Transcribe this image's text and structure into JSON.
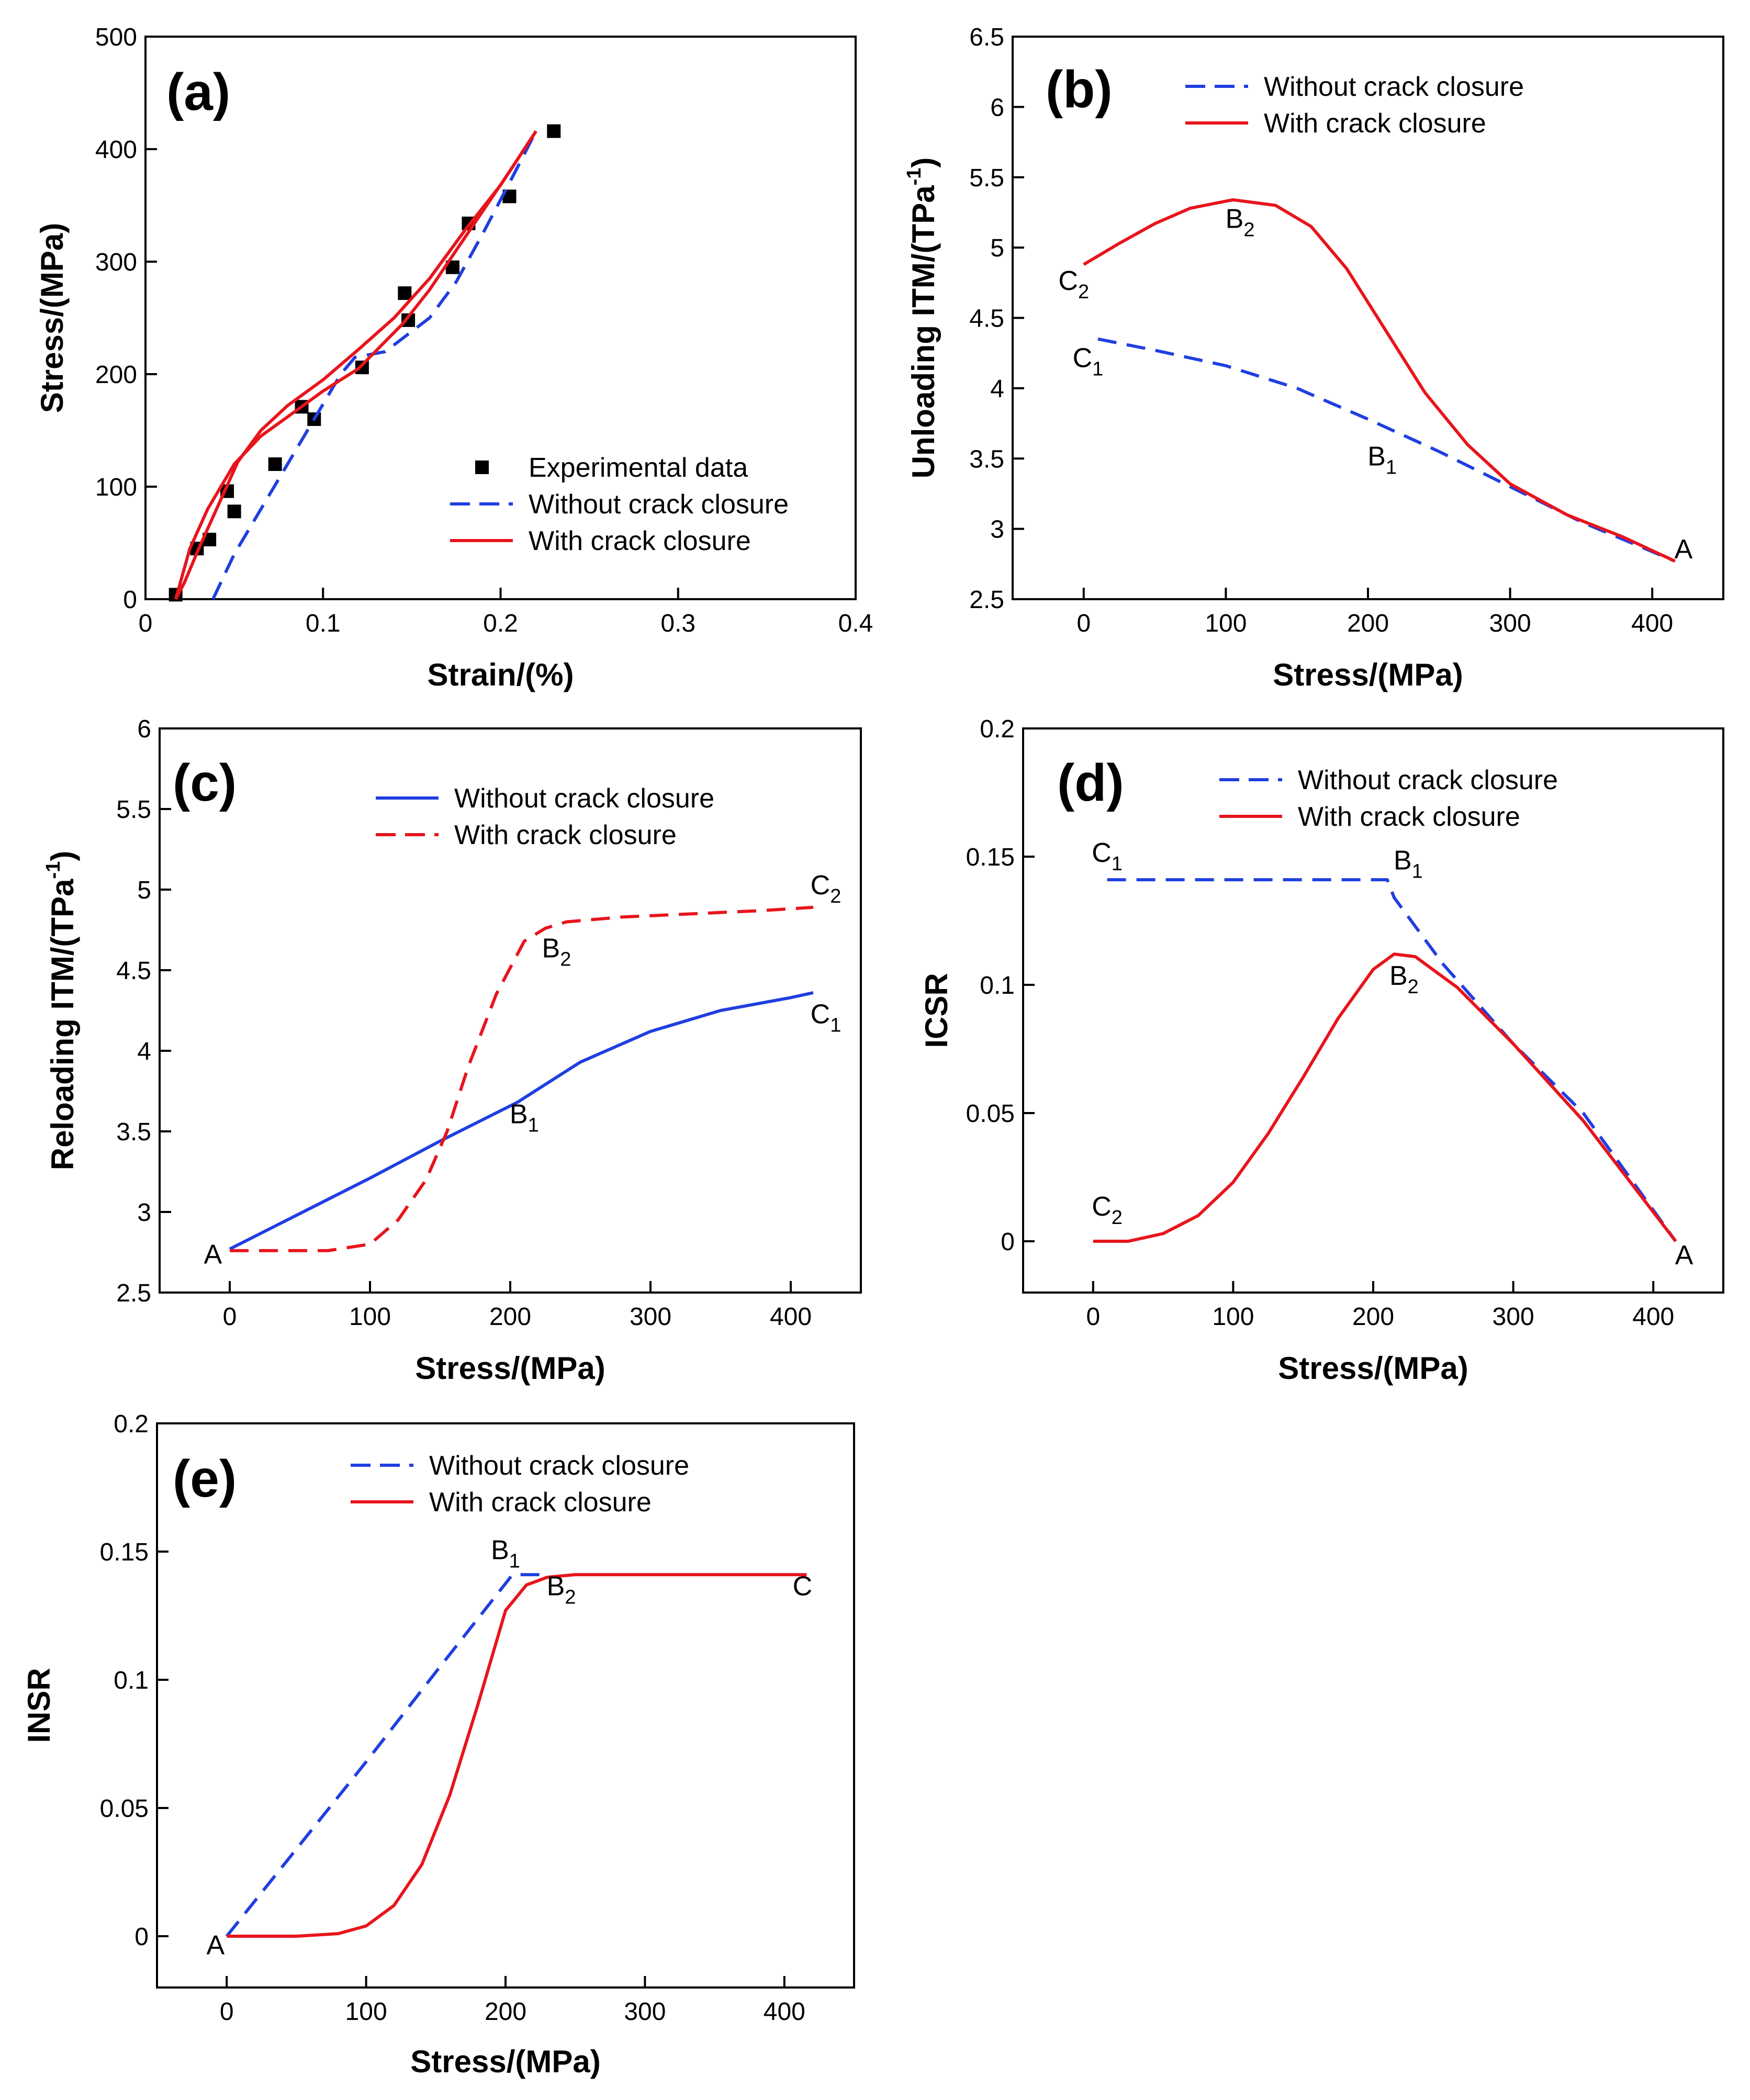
{
  "chart_data": [
    {
      "id": "a",
      "panel_label": "(a)",
      "type": "line",
      "xlabel": "Strain/(%)",
      "ylabel": "Stress/(MPa)",
      "xlim": [
        0,
        0.4
      ],
      "ylim": [
        0,
        500
      ],
      "xticks": [
        0,
        0.1,
        0.2,
        0.3,
        0.4
      ],
      "xtick_labels": [
        "0",
        "0.1",
        "0.2",
        "0.3",
        "0.4"
      ],
      "yticks": [
        0,
        100,
        200,
        300,
        400,
        500
      ],
      "ytick_labels": [
        "0",
        "100",
        "200",
        "300",
        "400",
        "500"
      ],
      "legend_position": "bottom-right",
      "series": [
        {
          "name": "Experimental data",
          "style": "square-markers",
          "color": "#000000",
          "x": [
            0.017,
            0.029,
            0.036,
            0.046,
            0.05,
            0.073,
            0.088,
            0.095,
            0.122,
            0.146,
            0.148,
            0.173,
            0.182,
            0.205,
            0.23
          ],
          "y": [
            4,
            45,
            53,
            96,
            78,
            120,
            171,
            160,
            206,
            272,
            248,
            295,
            334,
            358,
            416
          ]
        },
        {
          "name": "Without crack closure",
          "style": "dashed",
          "color": "#1f3fe0",
          "x": [
            0.038,
            0.05,
            0.065,
            0.08,
            0.095,
            0.11,
            0.118,
            0.135,
            0.16,
            0.175,
            0.19,
            0.205,
            0.22
          ],
          "y": [
            0,
            40,
            80,
            120,
            160,
            200,
            215,
            220,
            250,
            282,
            325,
            370,
            416
          ]
        },
        {
          "name": "With crack closure",
          "style": "solid",
          "color": "#e8141c",
          "role": "loading",
          "x": [
            0.017,
            0.025,
            0.035,
            0.05,
            0.065,
            0.08,
            0.1,
            0.12,
            0.145,
            0.16,
            0.175,
            0.19,
            0.205,
            0.22
          ],
          "y": [
            0,
            45,
            80,
            120,
            145,
            162,
            185,
            205,
            245,
            275,
            310,
            345,
            380,
            416
          ]
        },
        {
          "name": "",
          "style": "solid",
          "color": "#e8141c",
          "role": "unloading",
          "x": [
            0.22,
            0.2,
            0.18,
            0.16,
            0.14,
            0.12,
            0.1,
            0.08,
            0.065,
            0.052,
            0.04,
            0.03,
            0.022,
            0.017
          ],
          "y": [
            416,
            368,
            328,
            285,
            250,
            222,
            195,
            172,
            150,
            122,
            80,
            45,
            15,
            0
          ]
        }
      ],
      "annotations": []
    },
    {
      "id": "b",
      "panel_label": "(b)",
      "type": "line",
      "xlabel": "Stress/(MPa)",
      "ylabel": "Unloading ITM/(TPa",
      "ylabel_sup": "-1",
      "ylabel_end": ")",
      "xlim": [
        -50,
        450
      ],
      "ylim": [
        2.5,
        6.5
      ],
      "xticks": [
        0,
        100,
        200,
        300,
        400
      ],
      "xtick_labels": [
        "0",
        "100",
        "200",
        "300",
        "400"
      ],
      "yticks": [
        2.5,
        3,
        3.5,
        4,
        4.5,
        5,
        5.5,
        6,
        6.5
      ],
      "ytick_labels": [
        "2.5",
        "3",
        "3.5",
        "4",
        "4.5",
        "5",
        "5.5",
        "6",
        "6.5"
      ],
      "legend_position": "top-center",
      "series": [
        {
          "name": "Without crack closure",
          "style": "dashed",
          "color": "#1f3fe0",
          "x": [
            10,
            50,
            100,
            150,
            200,
            250,
            300,
            350,
            416
          ],
          "y": [
            4.35,
            4.27,
            4.16,
            4.0,
            3.78,
            3.55,
            3.3,
            3.05,
            2.77
          ]
        },
        {
          "name": "With crack closure",
          "style": "solid",
          "color": "#e8141c",
          "x": [
            0,
            25,
            50,
            75,
            105,
            135,
            160,
            185,
            210,
            240,
            270,
            300,
            340,
            380,
            416
          ],
          "y": [
            4.88,
            5.03,
            5.17,
            5.28,
            5.34,
            5.3,
            5.15,
            4.85,
            4.45,
            3.97,
            3.6,
            3.32,
            3.1,
            2.94,
            2.77
          ]
        }
      ],
      "annotations": [
        {
          "text": "C",
          "sub": "2",
          "x": -7,
          "y": 4.7
        },
        {
          "text": "B",
          "sub": "2",
          "x": 110,
          "y": 5.14
        },
        {
          "text": "C",
          "sub": "1",
          "x": 3,
          "y": 4.15
        },
        {
          "text": "B",
          "sub": "1",
          "x": 210,
          "y": 3.45
        },
        {
          "text": "A",
          "sub": "",
          "x": 422,
          "y": 2.79
        }
      ]
    },
    {
      "id": "c",
      "panel_label": "(c)",
      "type": "line",
      "xlabel": "Stress/(MPa)",
      "ylabel": "Reloading ITM/(TPa",
      "ylabel_sup": "-1",
      "ylabel_end": ")",
      "xlim": [
        -50,
        450
      ],
      "ylim": [
        2.5,
        6
      ],
      "xticks": [
        0,
        100,
        200,
        300,
        400
      ],
      "xtick_labels": [
        "0",
        "100",
        "200",
        "300",
        "400"
      ],
      "yticks": [
        2.5,
        3,
        3.5,
        4,
        4.5,
        5,
        5.5,
        6
      ],
      "ytick_labels": [
        "2.5",
        "3",
        "3.5",
        "4",
        "4.5",
        "5",
        "5.5",
        "6"
      ],
      "legend_position": "top-center",
      "series": [
        {
          "name": "Without crack closure",
          "style": "solid",
          "color": "#1f3fe0",
          "x": [
            0,
            50,
            100,
            150,
            205,
            250,
            300,
            350,
            400,
            416
          ],
          "y": [
            2.77,
            2.99,
            3.21,
            3.44,
            3.68,
            3.93,
            4.12,
            4.25,
            4.33,
            4.36
          ]
        },
        {
          "name": "With crack closure",
          "style": "dashed",
          "color": "#e8141c",
          "x": [
            0,
            40,
            70,
            100,
            120,
            140,
            155,
            170,
            190,
            210,
            225,
            240,
            280,
            330,
            380,
            416
          ],
          "y": [
            2.76,
            2.76,
            2.76,
            2.8,
            2.95,
            3.2,
            3.5,
            3.9,
            4.35,
            4.68,
            4.76,
            4.8,
            4.83,
            4.85,
            4.87,
            4.89
          ]
        }
      ],
      "annotations": [
        {
          "text": "A",
          "sub": "",
          "x": -12,
          "y": 2.68
        },
        {
          "text": "B",
          "sub": "1",
          "x": 210,
          "y": 3.55
        },
        {
          "text": "B",
          "sub": "2",
          "x": 233,
          "y": 4.58
        },
        {
          "text": "C",
          "sub": "1",
          "x": 425,
          "y": 4.17
        },
        {
          "text": "C",
          "sub": "2",
          "x": 425,
          "y": 4.97
        }
      ]
    },
    {
      "id": "d",
      "panel_label": "(d)",
      "type": "line",
      "xlabel": "Stress/(MPa)",
      "ylabel": "ICSR",
      "ylabel_sup": "",
      "ylabel_end": "",
      "xlim": [
        -50,
        450
      ],
      "ylim": [
        -0.02,
        0.2
      ],
      "xticks": [
        0,
        100,
        200,
        300,
        400
      ],
      "xtick_labels": [
        "0",
        "100",
        "200",
        "300",
        "400"
      ],
      "yticks": [
        0,
        0.05,
        0.1,
        0.15,
        0.2
      ],
      "ytick_labels": [
        "0",
        "0.05",
        "0.1",
        "0.15",
        "0.2"
      ],
      "legend_position": "top-center",
      "series": [
        {
          "name": "Without crack closure",
          "style": "dashed",
          "color": "#1f3fe0",
          "x": [
            10,
            50,
            100,
            150,
            210,
            215,
            250,
            300,
            350,
            416
          ],
          "y": [
            0.141,
            0.141,
            0.141,
            0.141,
            0.141,
            0.134,
            0.108,
            0.077,
            0.05,
            0
          ]
        },
        {
          "name": "With crack closure",
          "style": "solid",
          "color": "#e8141c",
          "x": [
            0,
            25,
            50,
            75,
            100,
            125,
            150,
            175,
            200,
            215,
            230,
            260,
            300,
            350,
            416
          ],
          "y": [
            0,
            0,
            0.003,
            0.01,
            0.023,
            0.042,
            0.064,
            0.087,
            0.106,
            0.112,
            0.111,
            0.099,
            0.077,
            0.047,
            0
          ]
        }
      ],
      "annotations": [
        {
          "text": "C",
          "sub": "1",
          "x": 10,
          "y": 0.148
        },
        {
          "text": "B",
          "sub": "1",
          "x": 225,
          "y": 0.145
        },
        {
          "text": "B",
          "sub": "2",
          "x": 222,
          "y": 0.1
        },
        {
          "text": "C",
          "sub": "2",
          "x": 10,
          "y": 0.01
        },
        {
          "text": "A",
          "sub": "",
          "x": 422,
          "y": -0.009
        }
      ]
    },
    {
      "id": "e",
      "panel_label": "(e)",
      "type": "line",
      "xlabel": "Stress/(MPa)",
      "ylabel": "INSR",
      "ylabel_sup": "",
      "ylabel_end": "",
      "xlim": [
        -50,
        450
      ],
      "ylim": [
        -0.02,
        0.2
      ],
      "xticks": [
        0,
        100,
        200,
        300,
        400
      ],
      "xtick_labels": [
        "0",
        "100",
        "200",
        "300",
        "400"
      ],
      "yticks": [
        0,
        0.05,
        0.1,
        0.15,
        0.2
      ],
      "ytick_labels": [
        "0",
        "0.05",
        "0.1",
        "0.15",
        "0.2"
      ],
      "legend_position": "top-left",
      "series": [
        {
          "name": "Without crack closure",
          "style": "dashed",
          "color": "#1f3fe0",
          "x": [
            0,
            50,
            100,
            150,
            205,
            230
          ],
          "y": [
            0,
            0.034,
            0.068,
            0.103,
            0.141,
            0.141
          ]
        },
        {
          "name": "With crack closure",
          "style": "solid",
          "color": "#e8141c",
          "x": [
            0,
            50,
            80,
            100,
            120,
            140,
            160,
            180,
            200,
            215,
            230,
            250,
            300,
            350,
            416
          ],
          "y": [
            0,
            0,
            0.001,
            0.004,
            0.012,
            0.028,
            0.055,
            0.09,
            0.127,
            0.137,
            0.14,
            0.141,
            0.141,
            0.141,
            0.141
          ]
        }
      ],
      "annotations": [
        {
          "text": "A",
          "sub": "",
          "x": -8,
          "y": -0.007
        },
        {
          "text": "B",
          "sub": "1",
          "x": 200,
          "y": 0.147
        },
        {
          "text": "B",
          "sub": "2",
          "x": 240,
          "y": 0.133
        },
        {
          "text": "C",
          "sub": "",
          "x": 413,
          "y": 0.133
        }
      ]
    }
  ]
}
